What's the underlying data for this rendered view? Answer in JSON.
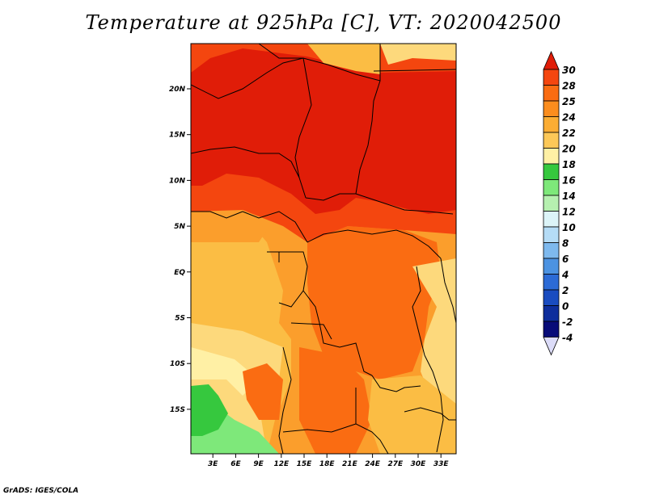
{
  "title": "Temperature at 925hPa [C], VT: 2020042500",
  "credit": "GrADS: IGES/COLA",
  "map": {
    "lon_ticks": [
      "3E",
      "6E",
      "9E",
      "12E",
      "15E",
      "18E",
      "21E",
      "24E",
      "27E",
      "30E",
      "33E"
    ],
    "lat_ticks": [
      "20N",
      "15N",
      "10N",
      "5N",
      "EQ",
      "5S",
      "10S",
      "15S"
    ],
    "field_colors": {
      "very_hot": "#e01d08",
      "hot": "#f4460f",
      "warm": "#fa6c12",
      "mild": "#fb9e2c",
      "cool": "#fbbd44",
      "cooler": "#fdd97c",
      "cold": "#fff0a5",
      "green_mid": "#7ee87a",
      "green_dark": "#36c83e"
    }
  },
  "colorbar": {
    "labels": [
      "30",
      "28",
      "25",
      "24",
      "22",
      "20",
      "18",
      "16",
      "14",
      "12",
      "10",
      "8",
      "6",
      "4",
      "2",
      "0",
      "-2",
      "-4"
    ],
    "colors": [
      "#e01d08",
      "#f4460f",
      "#fa6c12",
      "#fb8d1e",
      "#fbad34",
      "#fcc858",
      "#fff0a5",
      "#36c83e",
      "#7ee87a",
      "#b6f0b0",
      "#dcf4f8",
      "#b5dcf6",
      "#7eb9ee",
      "#4c93e2",
      "#2c6bd6",
      "#1a4cc0",
      "#0e2e9c",
      "#080c78"
    ],
    "top_arrow_color": "#e01d08",
    "bottom_arrow_color": "#dcdcf8"
  }
}
